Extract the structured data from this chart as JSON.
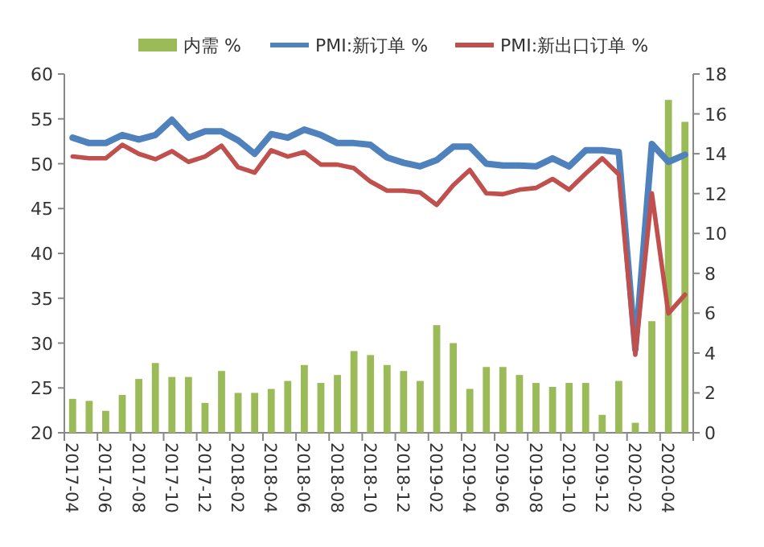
{
  "chart_data": {
    "type": "bar",
    "legend": "top",
    "categories": [
      "2017-04",
      null,
      "2017-06",
      null,
      "2017-08",
      null,
      "2017-10",
      null,
      "2017-12",
      null,
      "2018-02",
      null,
      "2018-04",
      null,
      "2018-06",
      null,
      "2018-08",
      null,
      "2018-10",
      null,
      "2018-12",
      null,
      "2019-02",
      null,
      "2019-04",
      null,
      "2019-06",
      null,
      "2019-08",
      null,
      "2019-10",
      null,
      "2019-12",
      null,
      "2020-02",
      null,
      "2020-04",
      null
    ],
    "series": [
      {
        "name": "内需 %",
        "axis": "y2",
        "color": "#9bbb59",
        "values": [
          1.7,
          1.6,
          1.1,
          1.9,
          2.7,
          3.5,
          2.8,
          2.8,
          1.5,
          3.1,
          2.0,
          2.0,
          2.2,
          2.6,
          3.4,
          2.5,
          2.9,
          4.1,
          3.9,
          3.4,
          3.1,
          2.6,
          5.4,
          4.5,
          2.2,
          3.3,
          3.3,
          2.9,
          2.5,
          2.3,
          2.5,
          2.5,
          0.9,
          2.6,
          0.5,
          5.6,
          16.7,
          15.6
        ]
      },
      {
        "name": "PMI:新订单 %",
        "type": "line",
        "color": "#4f81bd",
        "values": [
          52.9,
          52.3,
          52.3,
          53.2,
          52.7,
          53.2,
          54.9,
          52.9,
          53.6,
          53.6,
          52.6,
          51.1,
          53.3,
          52.9,
          53.8,
          53.2,
          52.3,
          52.3,
          52.1,
          50.7,
          50.1,
          49.7,
          50.4,
          51.9,
          51.9,
          50.0,
          49.8,
          49.8,
          49.7,
          50.6,
          49.7,
          51.5,
          51.5,
          51.3,
          29.3,
          52.2,
          50.2,
          51.0
        ]
      },
      {
        "name": "PMI:新出口订单 %",
        "type": "line",
        "color": "#c0504d",
        "values": [
          50.8,
          50.6,
          50.6,
          52.1,
          51.1,
          50.5,
          51.4,
          50.2,
          50.8,
          52.0,
          49.6,
          49.0,
          51.5,
          50.8,
          51.3,
          49.9,
          49.9,
          49.5,
          48.0,
          47.0,
          47.0,
          46.8,
          45.4,
          47.6,
          49.3,
          46.7,
          46.6,
          47.1,
          47.3,
          48.3,
          47.1,
          48.9,
          50.6,
          48.8,
          28.7,
          46.7,
          33.3,
          35.4
        ]
      }
    ],
    "ylim": [
      20,
      60
    ],
    "yticks": [
      20,
      25,
      30,
      35,
      40,
      45,
      50,
      55,
      60
    ],
    "y2lim": [
      0,
      18
    ],
    "y2ticks": [
      0,
      2,
      4,
      6,
      8,
      10,
      12,
      14,
      16,
      18
    ]
  }
}
